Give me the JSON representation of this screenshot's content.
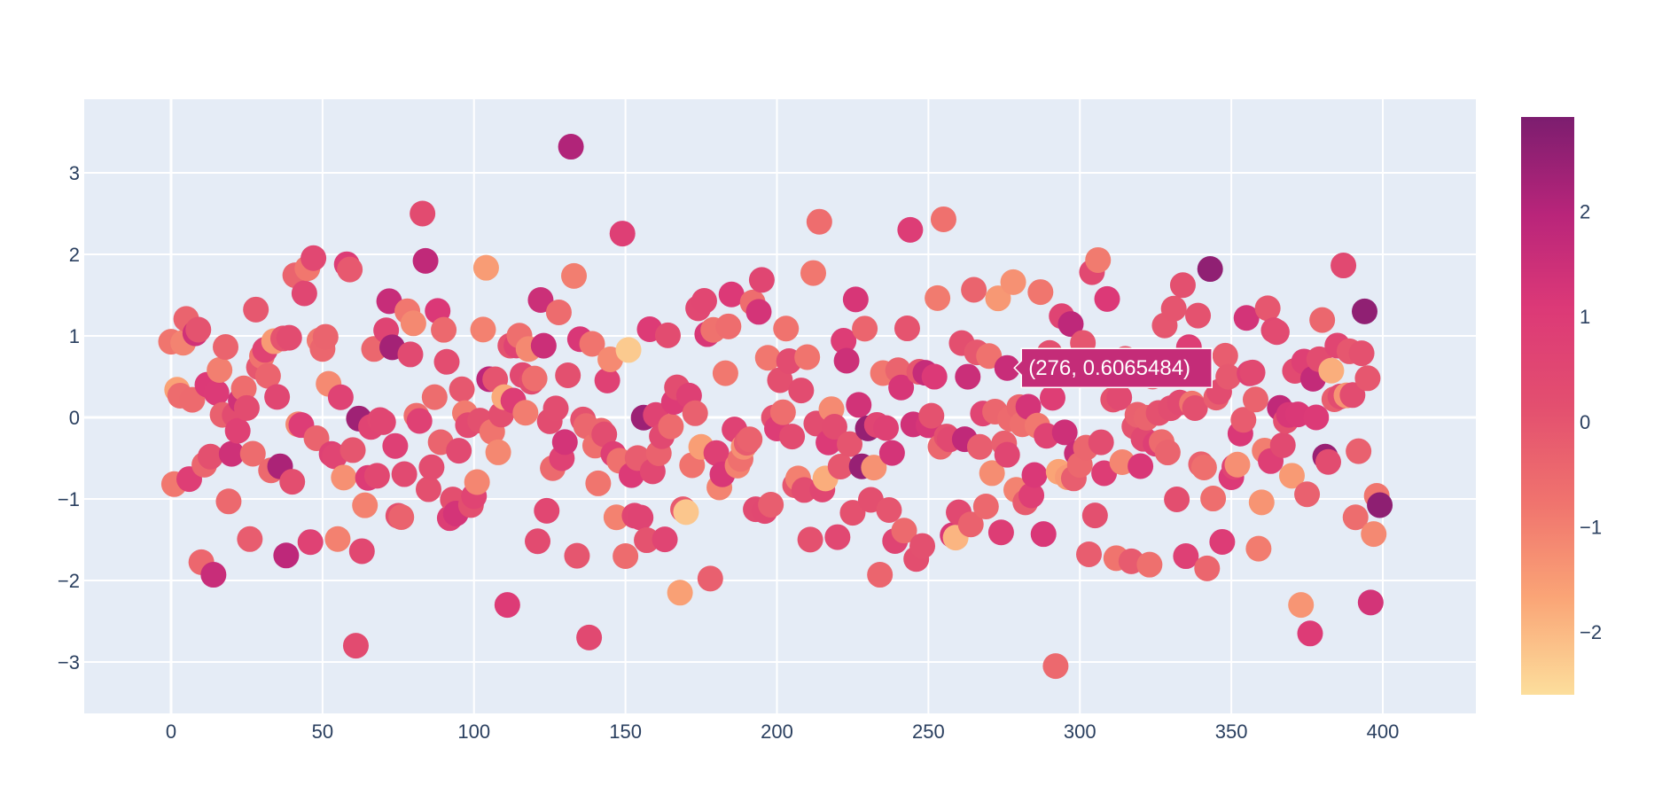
{
  "chart_data": {
    "type": "scatter",
    "title": "",
    "xlabel": "",
    "ylabel": "",
    "xlim": [
      -28,
      428
    ],
    "ylim": [
      -3.65,
      3.85
    ],
    "grid": true,
    "x_ticks": [
      0,
      50,
      100,
      150,
      200,
      250,
      300,
      350,
      400
    ],
    "y_ticks": [
      -3,
      -2,
      -1,
      0,
      1,
      2,
      3
    ],
    "y_tick_labels": [
      "−3",
      "−2",
      "−1",
      "0",
      "1",
      "2",
      "3"
    ],
    "colorbar": {
      "ticks": [
        -2,
        -1,
        0,
        1,
        2
      ],
      "tick_labels": [
        "−2",
        "−1",
        "0",
        "1",
        "2"
      ],
      "range": [
        -2.6,
        2.9
      ],
      "colorscale": [
        "#fcde9c",
        "#faa476",
        "#f0746e",
        "#e34f6f",
        "#dc3977",
        "#b9257a",
        "#7c1d6f"
      ]
    },
    "marker_size": 28,
    "n_points": 400,
    "x_values": "0..399 (integer index)",
    "notable_points": [
      {
        "x": 132,
        "y": 3.32,
        "c": 2.1
      },
      {
        "x": 83,
        "y": 2.5,
        "c": 0.3
      },
      {
        "x": 84,
        "y": 1.92,
        "c": 1.8
      },
      {
        "x": 214,
        "y": 2.4,
        "c": -0.6
      },
      {
        "x": 244,
        "y": 2.3,
        "c": 0.9
      },
      {
        "x": 255,
        "y": 2.43,
        "c": -0.7
      },
      {
        "x": 306,
        "y": 1.93,
        "c": -0.9
      },
      {
        "x": 343,
        "y": 1.82,
        "c": 2.6
      },
      {
        "x": 394,
        "y": 1.3,
        "c": 2.6
      },
      {
        "x": 61,
        "y": -2.8,
        "c": 0.3
      },
      {
        "x": 138,
        "y": -2.7,
        "c": 0.4
      },
      {
        "x": 292,
        "y": -3.05,
        "c": -0.5
      },
      {
        "x": 376,
        "y": -2.65,
        "c": 1.0
      },
      {
        "x": 373,
        "y": -2.3,
        "c": -1.4
      },
      {
        "x": 396,
        "y": -2.27,
        "c": 1.3
      },
      {
        "x": 111,
        "y": -2.3,
        "c": 1.0
      },
      {
        "x": 168,
        "y": -2.15,
        "c": -1.6
      },
      {
        "x": 14,
        "y": -1.93,
        "c": 1.6
      },
      {
        "x": 228,
        "y": -0.6,
        "c": 2.5
      },
      {
        "x": 36,
        "y": -0.6,
        "c": 2.2
      },
      {
        "x": 73,
        "y": 0.86,
        "c": 2.3
      }
    ],
    "hover": {
      "x": 276,
      "y": 0.6065484,
      "label": "(276, 0.6065484)",
      "color": "#c42c78"
    }
  }
}
